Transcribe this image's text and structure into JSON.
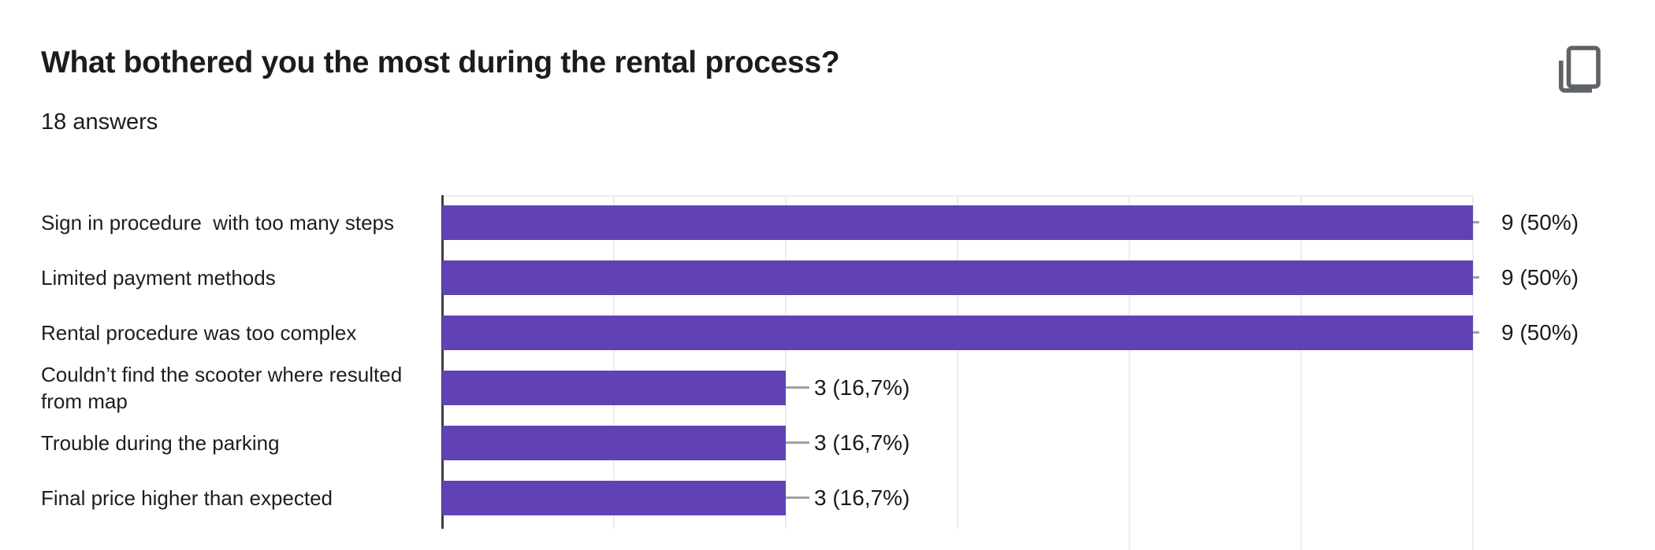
{
  "header": {
    "title": "What bothered you the most during the rental process?",
    "answers_count": "18 answers"
  },
  "toolbar": {
    "copy_icon": "copy-icon"
  },
  "colors": {
    "bar": "#6142b5",
    "axis": "#3c4043",
    "gridline": "#ececec",
    "callout": "#a0a0a0",
    "icon": "#5f6368",
    "text": "#1c1c1c"
  },
  "chart_data": {
    "type": "bar",
    "orientation": "horizontal",
    "title": "What bothered you the most during the rental process?",
    "subtitle": "18 answers",
    "total_answers": 18,
    "categories": [
      "Sign in procedure  with too many steps",
      "Limited payment methods",
      "Rental procedure was too complex",
      "Couldn’t find the scooter where resulted from map",
      "Trouble during the parking",
      "Final price higher than expected"
    ],
    "values": [
      9,
      9,
      9,
      3,
      3,
      3
    ],
    "value_labels": [
      "9 (50%)",
      "9 (50%)",
      "9 (50%)",
      "3 (16,7%)",
      "3 (16,7%)",
      "3 (16,7%)"
    ],
    "percentages": [
      50,
      50,
      50,
      16.7,
      16.7,
      16.7
    ],
    "xlim": [
      0,
      9
    ],
    "gridline_interval": 1.5,
    "grid": true,
    "legend": "none",
    "bar_color": "#6142b5"
  }
}
